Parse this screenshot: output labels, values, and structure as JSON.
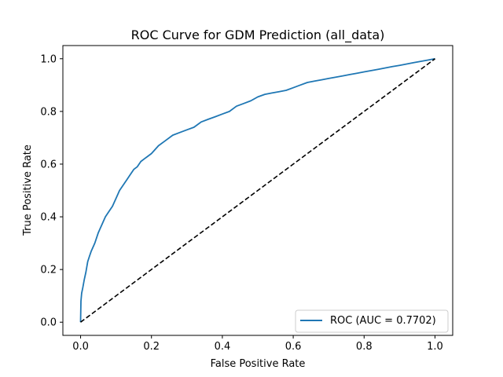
{
  "chart_data": {
    "type": "line",
    "title": "ROC Curve for GDM Prediction (all_data)",
    "xlabel": "False Positive Rate",
    "ylabel": "True Positive Rate",
    "xlim": [
      -0.05,
      1.05
    ],
    "ylim": [
      -0.05,
      1.05
    ],
    "x_ticks": [
      "0.0",
      "0.2",
      "0.4",
      "0.6",
      "0.8",
      "1.0"
    ],
    "y_ticks": [
      "0.0",
      "0.2",
      "0.4",
      "0.6",
      "0.8",
      "1.0"
    ],
    "grid": false,
    "legend_position": "lower-right",
    "series": [
      {
        "name": "ROC (AUC = 0.7702)",
        "color": "#1f77b4",
        "style": "solid",
        "x": [
          0.0,
          0.001,
          0.003,
          0.006,
          0.01,
          0.015,
          0.02,
          0.025,
          0.03,
          0.04,
          0.05,
          0.06,
          0.07,
          0.08,
          0.09,
          0.1,
          0.11,
          0.12,
          0.13,
          0.14,
          0.15,
          0.16,
          0.17,
          0.18,
          0.19,
          0.2,
          0.22,
          0.24,
          0.26,
          0.28,
          0.3,
          0.32,
          0.34,
          0.36,
          0.38,
          0.4,
          0.42,
          0.44,
          0.46,
          0.48,
          0.5,
          0.52,
          0.54,
          0.56,
          0.58,
          0.6,
          0.62,
          0.64,
          0.66,
          0.68,
          0.7,
          0.72,
          0.74,
          0.76,
          0.78,
          0.8,
          0.82,
          0.84,
          0.86,
          0.88,
          0.9,
          0.92,
          0.94,
          0.96,
          0.98,
          1.0
        ],
        "y": [
          0.0,
          0.08,
          0.11,
          0.13,
          0.16,
          0.19,
          0.23,
          0.25,
          0.27,
          0.3,
          0.34,
          0.37,
          0.4,
          0.42,
          0.44,
          0.47,
          0.5,
          0.52,
          0.54,
          0.56,
          0.58,
          0.59,
          0.61,
          0.62,
          0.63,
          0.64,
          0.67,
          0.69,
          0.71,
          0.72,
          0.73,
          0.74,
          0.76,
          0.77,
          0.78,
          0.79,
          0.8,
          0.82,
          0.83,
          0.84,
          0.855,
          0.865,
          0.87,
          0.875,
          0.88,
          0.89,
          0.9,
          0.91,
          0.915,
          0.92,
          0.925,
          0.93,
          0.935,
          0.94,
          0.945,
          0.95,
          0.955,
          0.96,
          0.965,
          0.97,
          0.975,
          0.98,
          0.985,
          0.99,
          0.995,
          1.0
        ]
      },
      {
        "name": "",
        "color": "#000000",
        "style": "dashed",
        "x": [
          0.0,
          1.0
        ],
        "y": [
          0.0,
          1.0
        ]
      }
    ]
  }
}
